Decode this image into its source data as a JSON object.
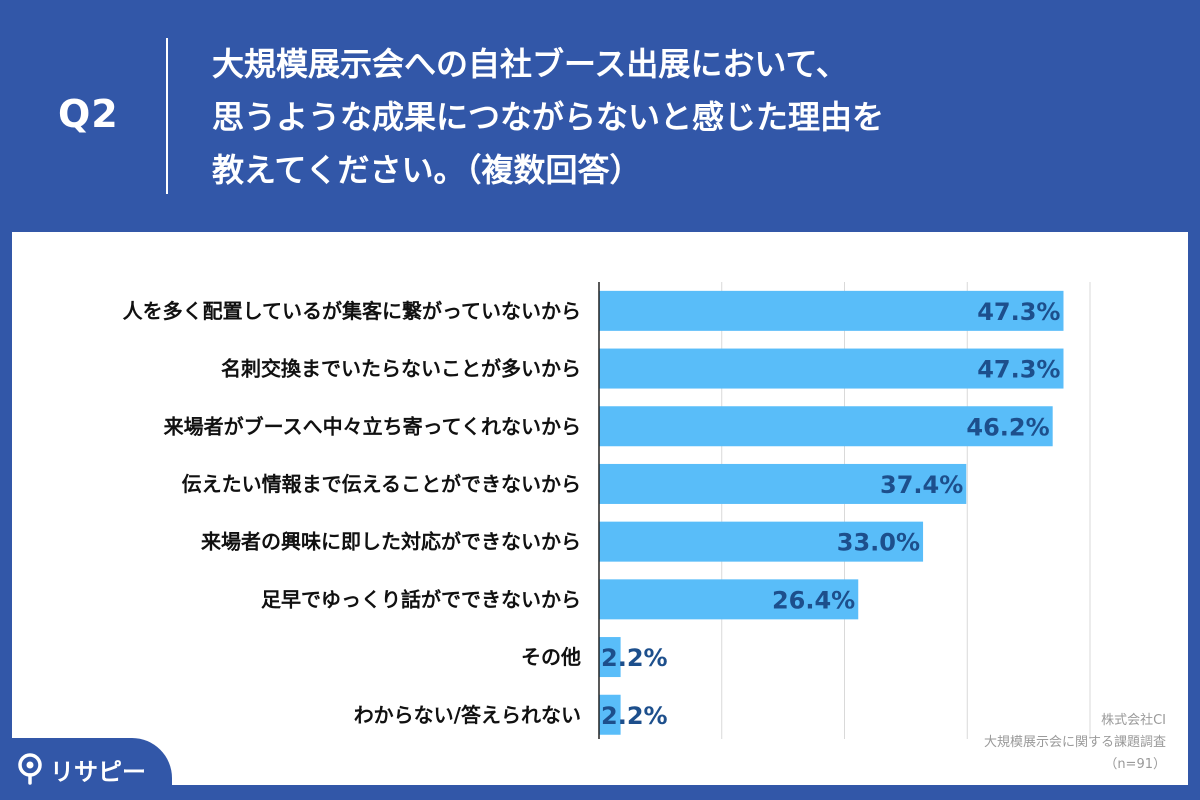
{
  "header": {
    "question_number": "Q2",
    "question_lines": [
      "大規模展示会への自社ブース出展において、",
      "思うような成果につながらないと感じた理由を",
      "教えてください。（複数回答）"
    ]
  },
  "chart_data": {
    "type": "bar",
    "orientation": "horizontal",
    "categories": [
      "人を多く配置しているが集客に繋がっていないから",
      "名刺交換までいたらないことが多いから",
      "来場者がブースへ中々立ち寄ってくれないから",
      "伝えたい情報まで伝えることができないから",
      "来場者の興味に即した対応ができないから",
      "足早でゆっくり話がでできないから",
      "その他",
      "わからない/答えられない"
    ],
    "values": [
      47.3,
      47.3,
      46.2,
      37.4,
      33.0,
      26.4,
      2.2,
      2.2
    ],
    "value_labels": [
      "47.3%",
      "47.3%",
      "46.2%",
      "37.4%",
      "33.0%",
      "26.4%",
      "2.2%",
      "2.2%"
    ],
    "xlim": [
      0,
      50
    ],
    "grid": true,
    "colors": {
      "bar": "#59bdf9",
      "value_label": "#1d4f8c",
      "grid": "#d9d9d9"
    }
  },
  "source": {
    "company": "株式会社CI",
    "survey": "大規模展示会に関する課題調査",
    "sample": "（n=91）"
  },
  "logo": {
    "text": "リサピー"
  },
  "colors": {
    "background": "#3257a8",
    "panel": "#ffffff"
  }
}
